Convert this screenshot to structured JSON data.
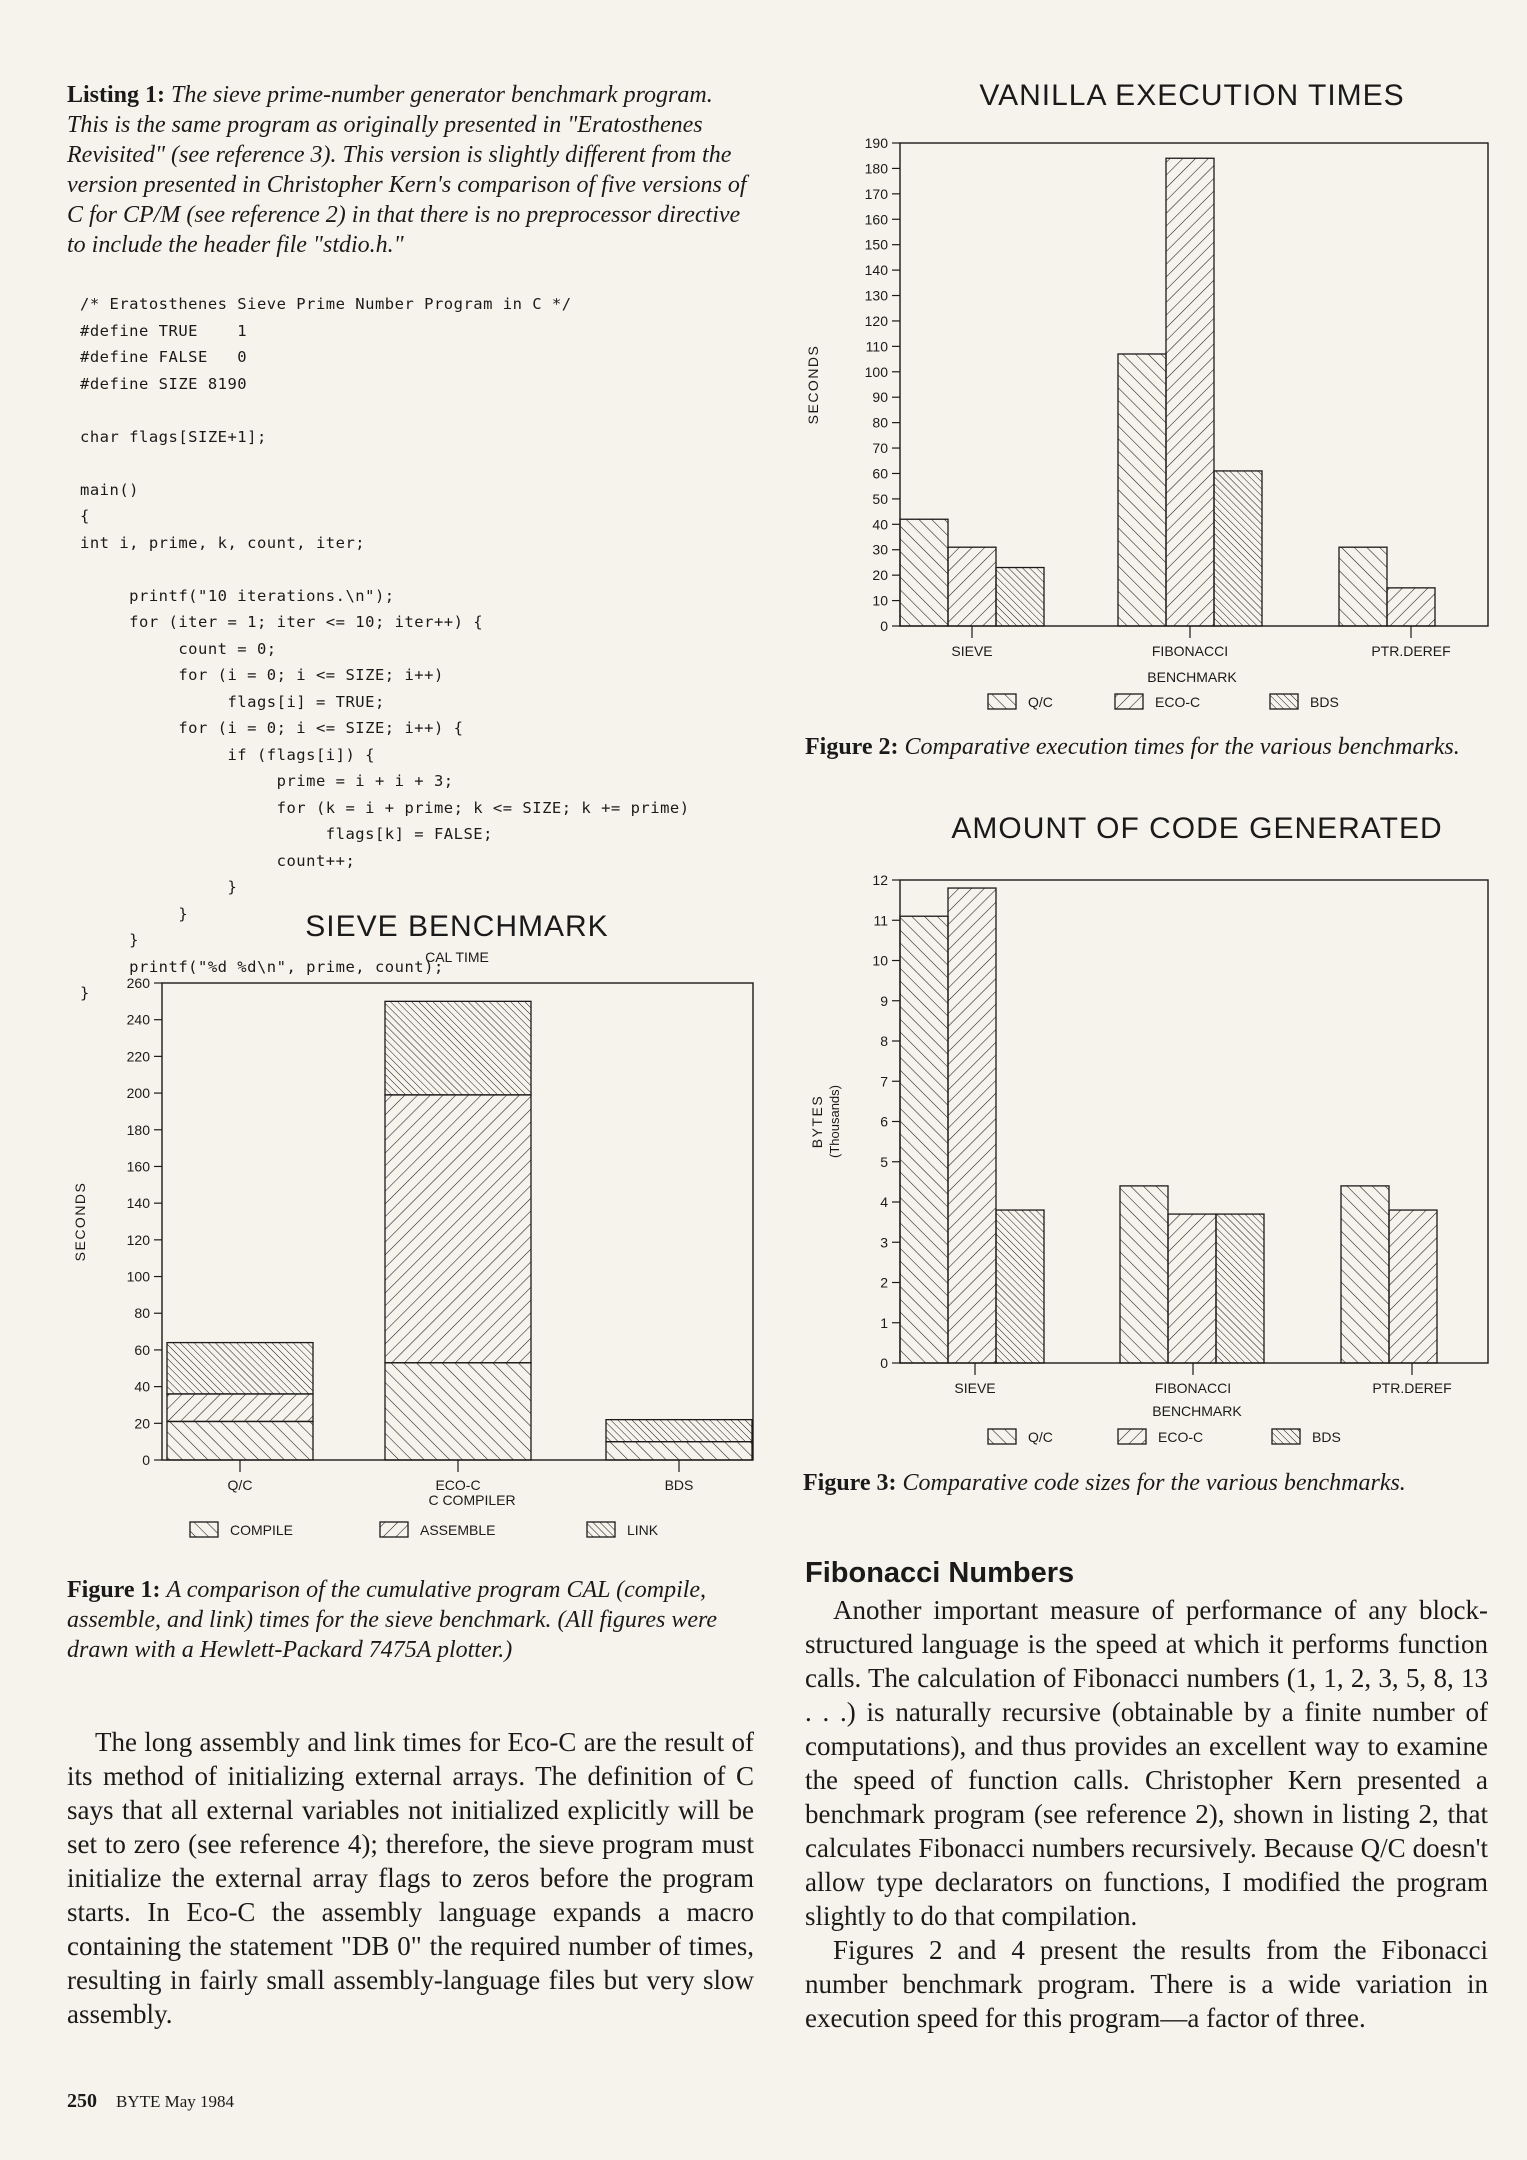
{
  "listing1": {
    "label": "Listing 1:",
    "caption": "The sieve prime-number generator benchmark program. This is the same program as originally presented in \"Eratosthenes Revisited\" (see reference 3). This version is slightly different from the version presented in Christopher Kern's comparison of five versions of C for CP/M (see reference 2) in that there is no preprocessor directive to include the header file \"stdio.h.\"",
    "code": "/* Eratosthenes Sieve Prime Number Program in C */\n#define TRUE    1\n#define FALSE   0\n#define SIZE 8190\n\nchar flags[SIZE+1];\n\nmain()\n{\nint i, prime, k, count, iter;\n\n     printf(\"10 iterations.\\n\");\n     for (iter = 1; iter <= 10; iter++) {\n          count = 0;\n          for (i = 0; i <= SIZE; i++)\n               flags[i] = TRUE;\n          for (i = 0; i <= SIZE; i++) {\n               if (flags[i]) {\n                    prime = i + i + 3;\n                    for (k = i + prime; k <= SIZE; k += prime)\n                         flags[k] = FALSE;\n                    count++;\n               }\n          }\n     }\n     printf(\"%d %d\\n\", prime, count);\n}"
  },
  "figure1": {
    "label": "Figure 1:",
    "caption": "A comparison of the cumulative program CAL (compile, assemble, and link) times for the sieve benchmark. (All figures were drawn with a Hewlett-Packard 7475A plotter.)"
  },
  "figure2": {
    "label": "Figure 2:",
    "caption": "Comparative execution times for the various benchmarks."
  },
  "figure3": {
    "label": "Figure 3:",
    "caption": "Comparative code sizes for the various benchmarks."
  },
  "body_left": "The long assembly and link times for Eco-C are the result of its method of initializing external arrays. The definition of C says that all external variables not initialized explicitly will be set to zero (see reference 4); therefore, the sieve program must initialize the external array flags to zeros before the program starts. In Eco-C the assembly language expands a macro containing the statement \"DB 0\" the required number of times, resulting in fairly small assembly-language files but very slow assembly.",
  "section": {
    "heading": "Fibonacci Numbers",
    "para1": "Another important measure of performance of any block-structured language is the speed at which it performs function calls. The calculation of Fibonacci numbers (1, 1, 2, 3, 5, 8, 13 . . .) is naturally recursive (obtainable by a finite number of computations), and thus provides an excellent way to examine the speed of function calls. Christopher Kern presented a benchmark program (see reference 2), shown in listing 2, that calculates Fibonacci numbers recursively. Because Q/C doesn't allow type declarators on functions, I modified the program slightly to do that compilation.",
    "para2": "Figures 2 and 4 present the results from the Fibonacci number benchmark program. There is a wide variation in execution speed for this program—a factor of three."
  },
  "footer": {
    "page": "250",
    "publication": "BYTE May 1984"
  },
  "chart_data": [
    {
      "id": "sieve-benchmark",
      "type": "bar",
      "stacked": true,
      "title": "SIEVE BENCHMARK",
      "subtitle": "CAL TIME",
      "ylabel": "SECONDS",
      "xlabel": "",
      "legend_title": "C COMPILER",
      "ylim": [
        0,
        260
      ],
      "yticks": [
        0,
        20,
        40,
        60,
        80,
        100,
        120,
        140,
        160,
        180,
        200,
        220,
        240,
        260
      ],
      "categories": [
        "Q/C",
        "ECO-C",
        "BDS"
      ],
      "series": [
        {
          "name": "COMPILE",
          "values": [
            21,
            53,
            10
          ]
        },
        {
          "name": "ASSEMBLE",
          "values": [
            15,
            146,
            0
          ]
        },
        {
          "name": "LINK",
          "values": [
            28,
            51,
            12
          ]
        }
      ],
      "legend_position": "bottom"
    },
    {
      "id": "vanilla-execution",
      "type": "bar",
      "title": "VANILLA EXECUTION TIMES",
      "ylabel": "SECONDS",
      "xlabel": "BENCHMARK",
      "ylim": [
        0,
        190
      ],
      "yticks": [
        0,
        10,
        20,
        30,
        40,
        50,
        60,
        70,
        80,
        90,
        100,
        110,
        120,
        130,
        140,
        150,
        160,
        170,
        180,
        190
      ],
      "categories": [
        "SIEVE",
        "FIBONACCI",
        "PTR.DEREF"
      ],
      "series": [
        {
          "name": "Q/C",
          "values": [
            42,
            107,
            31
          ]
        },
        {
          "name": "ECO-C",
          "values": [
            31,
            184,
            15
          ]
        },
        {
          "name": "BDS",
          "values": [
            23,
            61,
            null
          ]
        }
      ],
      "legend_position": "bottom"
    },
    {
      "id": "code-generated",
      "type": "bar",
      "title": "AMOUNT OF CODE GENERATED",
      "ylabel": "BYTES",
      "ylabel2": "(Thousands)",
      "xlabel": "BENCHMARK",
      "ylim": [
        0,
        12
      ],
      "yticks": [
        0,
        1,
        2,
        3,
        4,
        5,
        6,
        7,
        8,
        9,
        10,
        11,
        12
      ],
      "categories": [
        "SIEVE",
        "FIBONACCI",
        "PTR.DEREF"
      ],
      "series": [
        {
          "name": "Q/C",
          "values": [
            11.1,
            4.4,
            4.4
          ]
        },
        {
          "name": "ECO-C",
          "values": [
            11.8,
            3.7,
            3.8
          ]
        },
        {
          "name": "BDS",
          "values": [
            3.8,
            3.7,
            null
          ]
        }
      ],
      "legend_position": "bottom"
    }
  ]
}
